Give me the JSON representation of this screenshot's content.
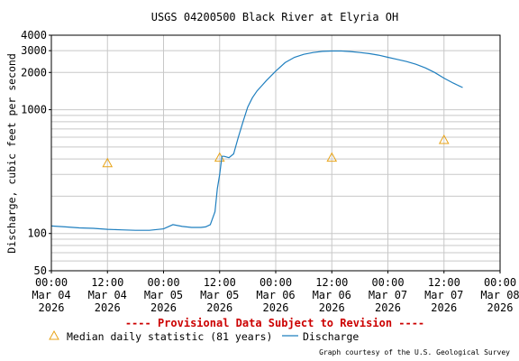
{
  "chart_data": {
    "type": "line",
    "title": "USGS 04200500 Black River at Elyria OH",
    "ylabel": "Discharge, cubic feet per second",
    "yscale": "log",
    "ylim": [
      50,
      4000
    ],
    "y_ticks": [
      50,
      100,
      1000,
      2000,
      3000,
      4000
    ],
    "y_minor_ticks": [
      60,
      70,
      80,
      90,
      200,
      300,
      400,
      500,
      600,
      700,
      800,
      900
    ],
    "xlim": [
      0,
      96
    ],
    "x_ticks": [
      {
        "hour": 0,
        "time": "00:00",
        "date": "Mar 04",
        "year": "2026"
      },
      {
        "hour": 12,
        "time": "12:00",
        "date": "Mar 04",
        "year": "2026"
      },
      {
        "hour": 24,
        "time": "00:00",
        "date": "Mar 05",
        "year": "2026"
      },
      {
        "hour": 36,
        "time": "12:00",
        "date": "Mar 05",
        "year": "2026"
      },
      {
        "hour": 48,
        "time": "00:00",
        "date": "Mar 06",
        "year": "2026"
      },
      {
        "hour": 60,
        "time": "12:00",
        "date": "Mar 06",
        "year": "2026"
      },
      {
        "hour": 72,
        "time": "00:00",
        "date": "Mar 07",
        "year": "2026"
      },
      {
        "hour": 84,
        "time": "12:00",
        "date": "Mar 07",
        "year": "2026"
      },
      {
        "hour": 96,
        "time": "00:00",
        "date": "Mar 08",
        "year": "2026"
      }
    ],
    "grid": true,
    "legend_position": "bottom",
    "series": [
      {
        "name": "Median daily statistic (81 years)",
        "kind": "markers",
        "color": "#e8a317",
        "points": [
          {
            "hour": 12,
            "value": 370
          },
          {
            "hour": 36,
            "value": 410
          },
          {
            "hour": 60,
            "value": 410
          },
          {
            "hour": 84,
            "value": 570
          }
        ]
      },
      {
        "name": "Discharge",
        "kind": "line",
        "color": "#1f7fbf",
        "points": [
          {
            "hour": 0,
            "value": 115
          },
          {
            "hour": 3,
            "value": 113
          },
          {
            "hour": 6,
            "value": 111
          },
          {
            "hour": 9,
            "value": 110
          },
          {
            "hour": 12,
            "value": 108
          },
          {
            "hour": 15,
            "value": 107
          },
          {
            "hour": 18,
            "value": 106
          },
          {
            "hour": 21,
            "value": 106
          },
          {
            "hour": 24,
            "value": 109
          },
          {
            "hour": 26,
            "value": 118
          },
          {
            "hour": 28,
            "value": 114
          },
          {
            "hour": 30,
            "value": 112
          },
          {
            "hour": 32,
            "value": 112
          },
          {
            "hour": 33,
            "value": 113
          },
          {
            "hour": 34,
            "value": 118
          },
          {
            "hour": 35,
            "value": 150
          },
          {
            "hour": 35.5,
            "value": 230
          },
          {
            "hour": 36,
            "value": 300
          },
          {
            "hour": 36.5,
            "value": 420
          },
          {
            "hour": 37,
            "value": 420
          },
          {
            "hour": 38,
            "value": 410
          },
          {
            "hour": 39,
            "value": 440
          },
          {
            "hour": 40,
            "value": 600
          },
          {
            "hour": 41,
            "value": 800
          },
          {
            "hour": 42,
            "value": 1050
          },
          {
            "hour": 43,
            "value": 1250
          },
          {
            "hour": 44,
            "value": 1420
          },
          {
            "hour": 45,
            "value": 1560
          },
          {
            "hour": 46,
            "value": 1720
          },
          {
            "hour": 48,
            "value": 2050
          },
          {
            "hour": 50,
            "value": 2400
          },
          {
            "hour": 52,
            "value": 2650
          },
          {
            "hour": 54,
            "value": 2800
          },
          {
            "hour": 56,
            "value": 2900
          },
          {
            "hour": 58,
            "value": 2960
          },
          {
            "hour": 60,
            "value": 2980
          },
          {
            "hour": 62,
            "value": 2980
          },
          {
            "hour": 64,
            "value": 2950
          },
          {
            "hour": 66,
            "value": 2900
          },
          {
            "hour": 68,
            "value": 2840
          },
          {
            "hour": 70,
            "value": 2760
          },
          {
            "hour": 72,
            "value": 2650
          },
          {
            "hour": 74,
            "value": 2550
          },
          {
            "hour": 76,
            "value": 2450
          },
          {
            "hour": 78,
            "value": 2330
          },
          {
            "hour": 80,
            "value": 2180
          },
          {
            "hour": 82,
            "value": 2000
          },
          {
            "hour": 84,
            "value": 1800
          },
          {
            "hour": 86,
            "value": 1640
          },
          {
            "hour": 88,
            "value": 1510
          }
        ]
      }
    ],
    "annotations": {
      "provisional": "---- Provisional Data Subject to Revision ----",
      "courtesy": "Graph courtesy of the U.S. Geological Survey"
    },
    "colors": {
      "grid": "#c8c8c8",
      "axis": "#000000",
      "provisional": "#cc0000",
      "marker": "#e8a317",
      "line": "#1f7fbf"
    }
  }
}
